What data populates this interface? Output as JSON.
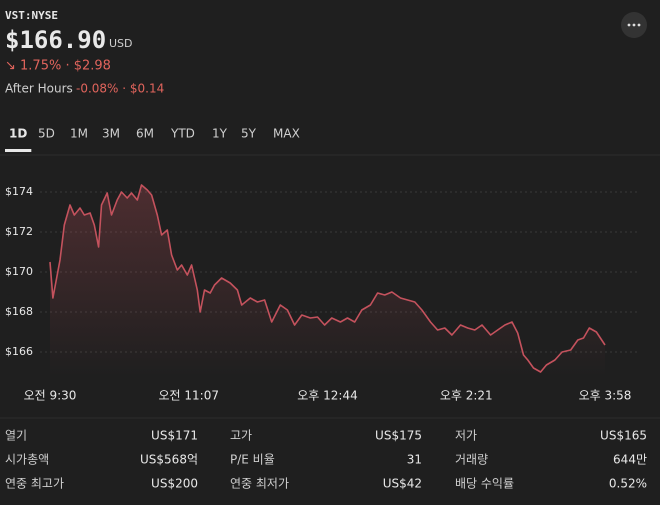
{
  "header": {
    "ticker": "VST:NYSE",
    "price": "$166.90",
    "currency": "USD",
    "change": "↘ 1.75% · $2.98",
    "after_hours_label": "After Hours",
    "after_hours_change": "-0.08% · $0.14"
  },
  "tabs": [
    "1D",
    "5D",
    "1M",
    "3M",
    "6M",
    "YTD",
    "1Y",
    "5Y",
    "MAX"
  ],
  "chart_data": {
    "type": "line",
    "color": "#c4525d",
    "grid": true,
    "x": [
      0,
      2,
      7,
      10,
      14,
      17,
      21,
      24,
      28,
      31,
      34,
      36,
      40,
      43,
      47,
      50,
      54,
      57,
      61,
      64,
      68,
      71,
      75,
      78,
      82,
      85,
      89,
      92,
      96,
      99,
      103,
      105,
      108,
      112,
      115,
      120,
      126,
      131,
      134,
      140,
      145,
      150,
      155,
      161,
      166,
      171,
      176,
      182,
      187,
      192,
      197,
      203,
      208,
      213,
      218,
      224,
      229,
      234,
      239,
      245,
      250,
      255,
      260,
      266,
      271,
      276,
      281,
      287,
      292,
      297,
      302,
      308,
      313,
      318,
      323,
      327,
      331,
      334,
      338,
      343,
      347,
      353,
      358,
      364,
      369,
      373,
      377,
      382,
      388
    ],
    "values": [
      170.5,
      168.7,
      170.6,
      172.35,
      173.35,
      172.85,
      173.2,
      172.85,
      172.95,
      172.35,
      171.25,
      173.35,
      173.95,
      172.85,
      173.6,
      174.0,
      173.7,
      173.95,
      173.6,
      174.35,
      174.1,
      173.85,
      172.85,
      171.85,
      172.1,
      170.85,
      170.1,
      170.35,
      169.85,
      170.35,
      169.1,
      168.0,
      169.1,
      168.95,
      169.35,
      169.7,
      169.45,
      169.1,
      168.35,
      168.7,
      168.5,
      168.6,
      167.5,
      168.35,
      168.1,
      167.35,
      167.85,
      167.7,
      167.75,
      167.35,
      167.7,
      167.5,
      167.7,
      167.5,
      168.1,
      168.35,
      168.95,
      168.85,
      169.0,
      168.7,
      168.6,
      168.5,
      168.1,
      167.5,
      167.1,
      167.2,
      166.85,
      167.35,
      167.2,
      167.1,
      167.35,
      166.85,
      167.1,
      167.35,
      167.5,
      166.95,
      165.85,
      165.6,
      165.2,
      165.0,
      165.35,
      165.6,
      166.0,
      166.1,
      166.6,
      166.7,
      167.2,
      167.0,
      166.35
    ],
    "xlim": [
      0,
      388
    ],
    "xticks": [
      {
        "value": 0,
        "label": "오전 9:30"
      },
      {
        "value": 97,
        "label": "오전 11:07"
      },
      {
        "value": 194,
        "label": "오후 12:44"
      },
      {
        "value": 291,
        "label": "오후 2:21"
      },
      {
        "value": 388,
        "label": "오후 3:58"
      }
    ],
    "ylim": [
      164.8,
      174.8
    ],
    "yticks": [
      {
        "value": 166,
        "label": "$166"
      },
      {
        "value": 168,
        "label": "$168"
      },
      {
        "value": 170,
        "label": "$170"
      },
      {
        "value": 172,
        "label": "$172"
      },
      {
        "value": 174,
        "label": "$174"
      }
    ]
  },
  "stats": [
    {
      "label": "열기",
      "value": "US$171"
    },
    {
      "label": "고가",
      "value": "US$175"
    },
    {
      "label": "저가",
      "value": "US$165"
    },
    {
      "label": "시가총액",
      "value": "US$568억"
    },
    {
      "label": "P/E 비율",
      "value": "31"
    },
    {
      "label": "거래량",
      "value": "644만"
    },
    {
      "label": "연중 최고가",
      "value": "US$200"
    },
    {
      "label": "연중 최저가",
      "value": "US$42"
    },
    {
      "label": "배당 수익률",
      "value": "0.52%"
    }
  ]
}
